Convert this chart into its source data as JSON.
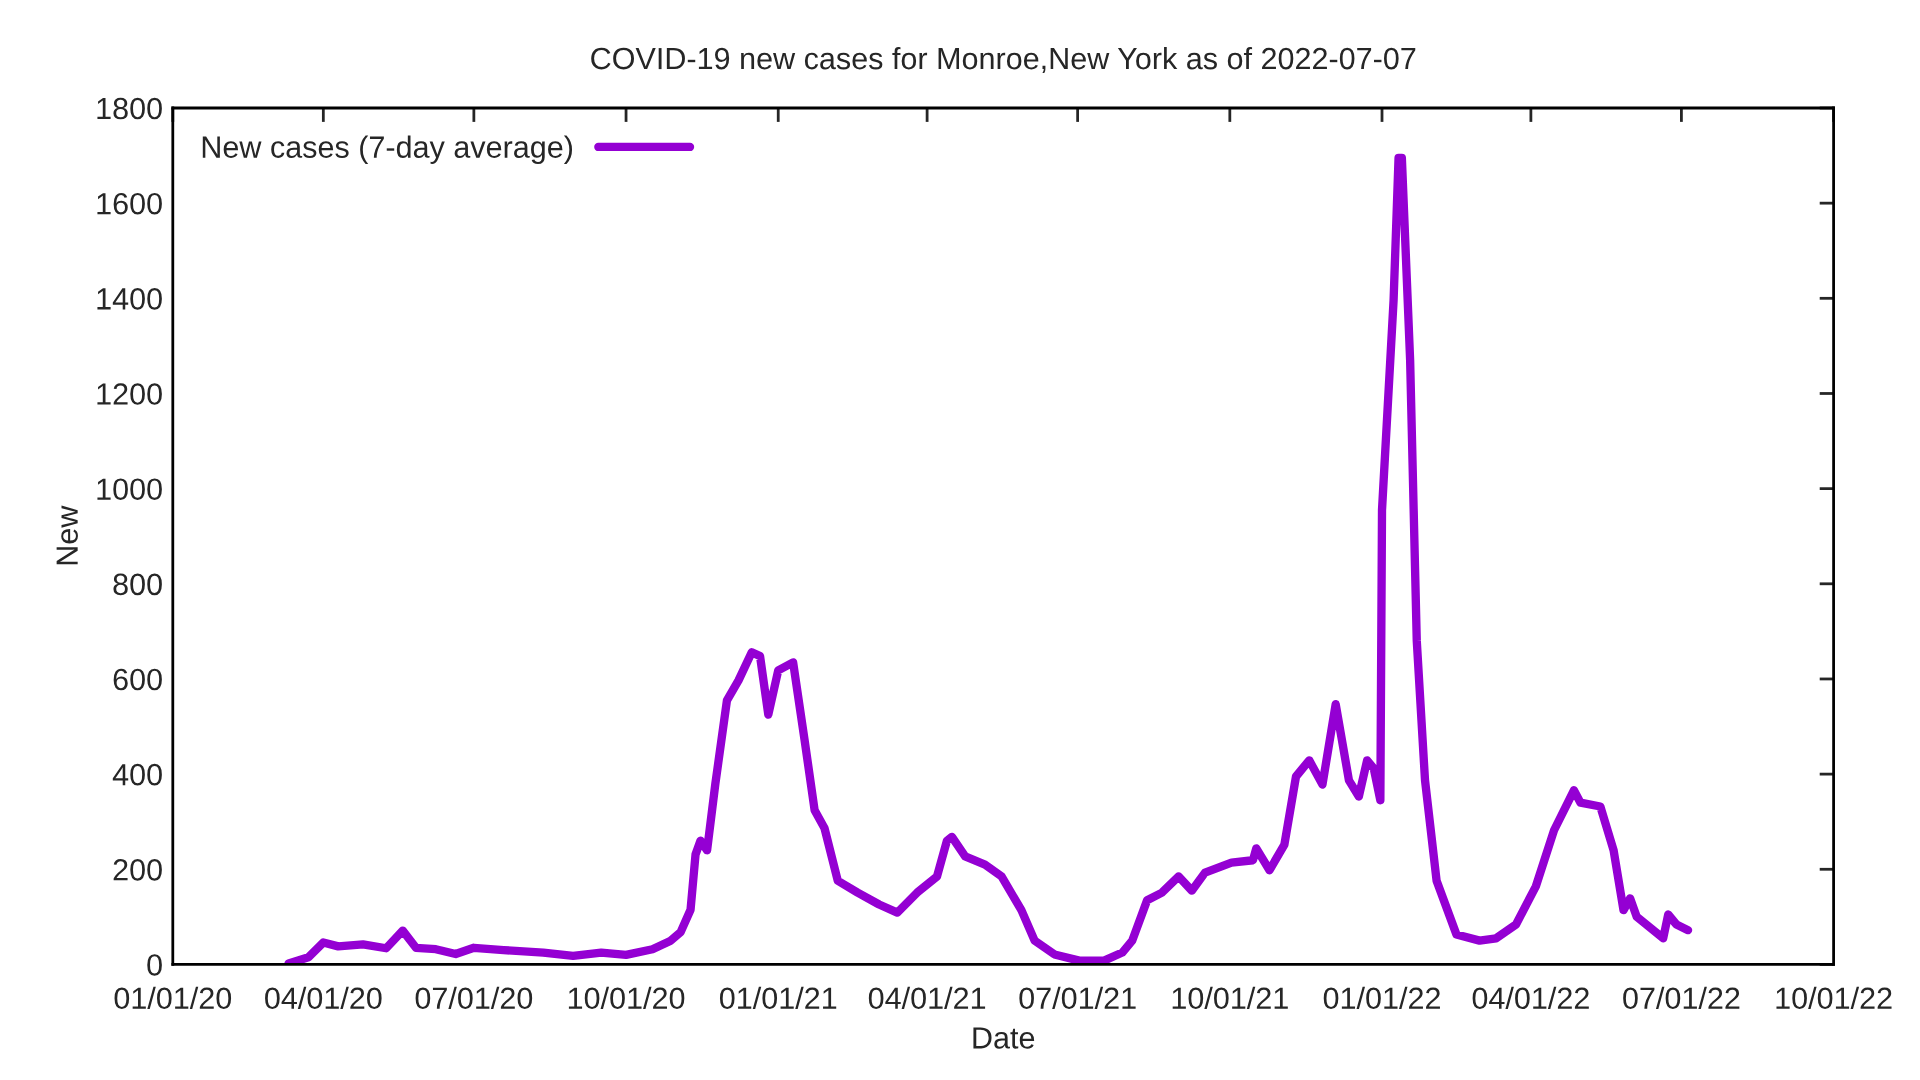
{
  "chart_data": {
    "type": "line",
    "title": "COVID-19 new cases for Monroe,New York as of 2022-07-07",
    "xlabel": "Date",
    "ylabel": "New",
    "x": [
      "2020-03-11",
      "2020-03-23",
      "2020-04-01",
      "2020-04-10",
      "2020-04-25",
      "2020-05-09",
      "2020-05-19",
      "2020-05-27",
      "2020-06-08",
      "2020-06-20",
      "2020-07-01",
      "2020-07-19",
      "2020-08-12",
      "2020-08-30",
      "2020-09-16",
      "2020-10-01",
      "2020-10-17",
      "2020-10-28",
      "2020-11-03",
      "2020-11-09",
      "2020-11-12",
      "2020-11-15",
      "2020-11-19",
      "2020-11-24",
      "2020-12-01",
      "2020-12-08",
      "2020-12-16",
      "2020-12-21",
      "2020-12-26",
      "2021-01-01",
      "2021-01-10",
      "2021-01-17",
      "2021-01-23",
      "2021-01-29",
      "2021-02-06",
      "2021-02-18",
      "2021-03-03",
      "2021-03-14",
      "2021-03-26",
      "2021-04-07",
      "2021-04-13",
      "2021-04-16",
      "2021-04-24",
      "2021-05-06",
      "2021-05-16",
      "2021-05-28",
      "2021-06-05",
      "2021-06-17",
      "2021-07-02",
      "2021-07-17",
      "2021-07-28",
      "2021-08-03",
      "2021-08-12",
      "2021-08-21",
      "2021-08-31",
      "2021-09-08",
      "2021-09-16",
      "2021-10-02",
      "2021-10-15",
      "2021-10-17",
      "2021-10-25",
      "2021-11-03",
      "2021-11-10",
      "2021-11-18",
      "2021-11-26",
      "2021-12-04",
      "2021-12-12",
      "2021-12-18",
      "2021-12-23",
      "2021-12-27",
      "2021-12-31",
      "2022-01-01",
      "2022-01-08",
      "2022-01-11",
      "2022-01-13",
      "2022-01-18",
      "2022-01-22",
      "2022-01-27",
      "2022-02-03",
      "2022-02-15",
      "2022-03-01",
      "2022-03-11",
      "2022-03-23",
      "2022-04-04",
      "2022-04-15",
      "2022-04-27",
      "2022-05-01",
      "2022-05-13",
      "2022-05-21",
      "2022-05-27",
      "2022-05-31",
      "2022-06-04",
      "2022-06-20",
      "2022-06-23",
      "2022-06-28",
      "2022-07-05"
    ],
    "series": [
      {
        "name": "New cases (7-day average)",
        "color": "#9400d3",
        "values": [
          2,
          15,
          46,
          38,
          42,
          34,
          71,
          35,
          32,
          22,
          35,
          30,
          25,
          18,
          25,
          20,
          32,
          50,
          68,
          115,
          231,
          260,
          240,
          380,
          555,
          597,
          656,
          648,
          525,
          618,
          635,
          470,
          324,
          286,
          176,
          151,
          126,
          109,
          151,
          185,
          260,
          268,
          227,
          210,
          185,
          114,
          50,
          21,
          8,
          8,
          25,
          50,
          135,
          151,
          185,
          155,
          193,
          214,
          219,
          244,
          198,
          252,
          395,
          429,
          378,
          547,
          387,
          353,
          429,
          412,
          345,
          955,
          1396,
          1695,
          1695,
          1270,
          681,
          387,
          176,
          63,
          50,
          55,
          84,
          164,
          282,
          366,
          340,
          332,
          240,
          114,
          139,
          100,
          55,
          105,
          84,
          72
        ]
      }
    ],
    "xlim": [
      "2020-01-01",
      "2022-10-01"
    ],
    "xticks": [
      {
        "value": "2020-01-01",
        "label": "01/01/20"
      },
      {
        "value": "2020-04-01",
        "label": "04/01/20"
      },
      {
        "value": "2020-07-01",
        "label": "07/01/20"
      },
      {
        "value": "2020-10-01",
        "label": "10/01/20"
      },
      {
        "value": "2021-01-01",
        "label": "01/01/21"
      },
      {
        "value": "2021-04-01",
        "label": "04/01/21"
      },
      {
        "value": "2021-07-01",
        "label": "07/01/21"
      },
      {
        "value": "2021-10-01",
        "label": "10/01/21"
      },
      {
        "value": "2022-01-01",
        "label": "01/01/22"
      },
      {
        "value": "2022-04-01",
        "label": "04/01/22"
      },
      {
        "value": "2022-07-01",
        "label": "07/01/22"
      },
      {
        "value": "2022-10-01",
        "label": "10/01/22"
      }
    ],
    "ylim": [
      0,
      1800
    ],
    "yticks": [
      0,
      200,
      400,
      600,
      800,
      1000,
      1200,
      1400,
      1600,
      1800
    ],
    "grid": false,
    "legend": "top left",
    "line_style": "solid",
    "marker": "none"
  }
}
